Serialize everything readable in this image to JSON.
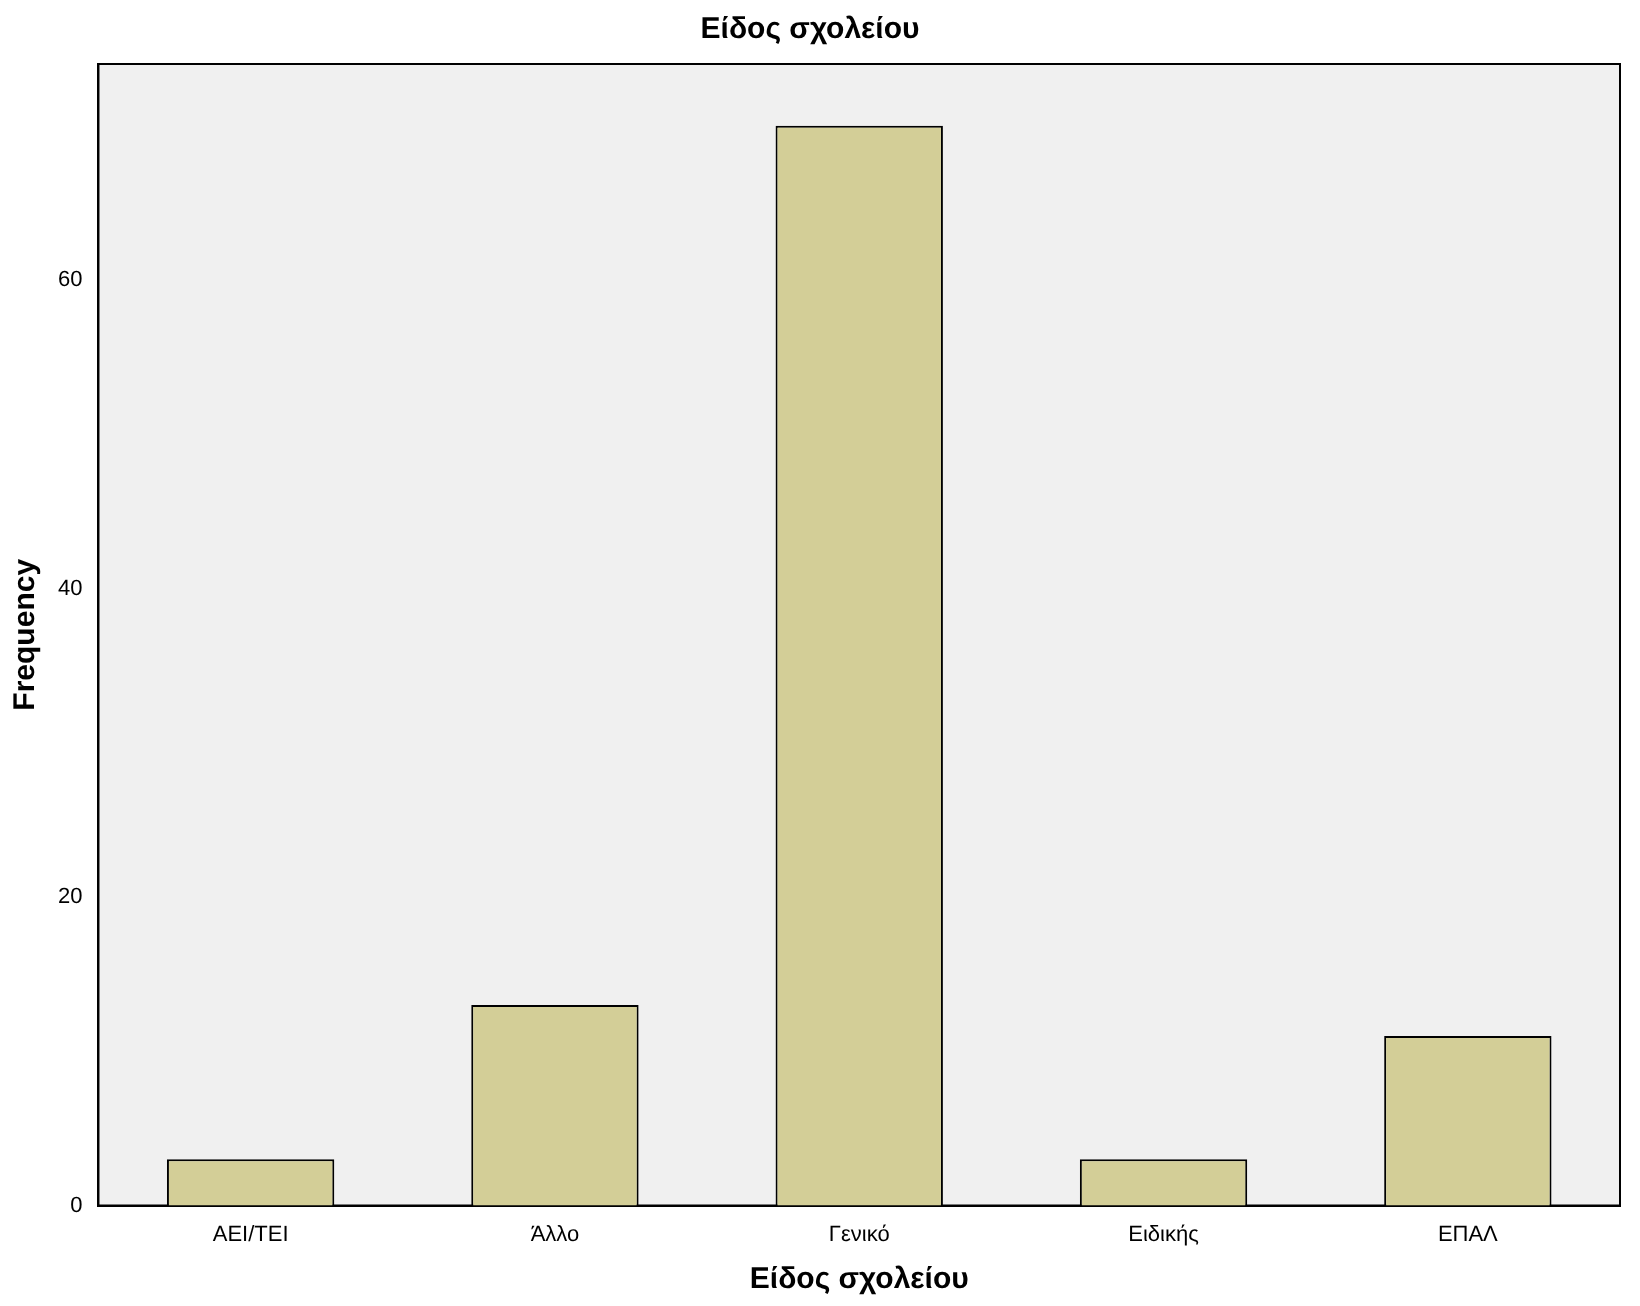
{
  "chart_data": {
    "type": "bar",
    "title": "Είδος σχολείου",
    "xlabel": "Είδος σχολείου",
    "ylabel": "Frequency",
    "categories": [
      "ΑΕΙ/ΤΕΙ",
      "Άλλο",
      "Γενικό",
      "Ειδικής",
      "ΕΠΑΛ"
    ],
    "values": [
      3,
      13,
      70,
      3,
      11
    ],
    "color": "#d3ce97",
    "ylim": [
      0,
      74
    ],
    "yticks": [
      0,
      20,
      40,
      60
    ],
    "grid": false,
    "legend": false
  }
}
